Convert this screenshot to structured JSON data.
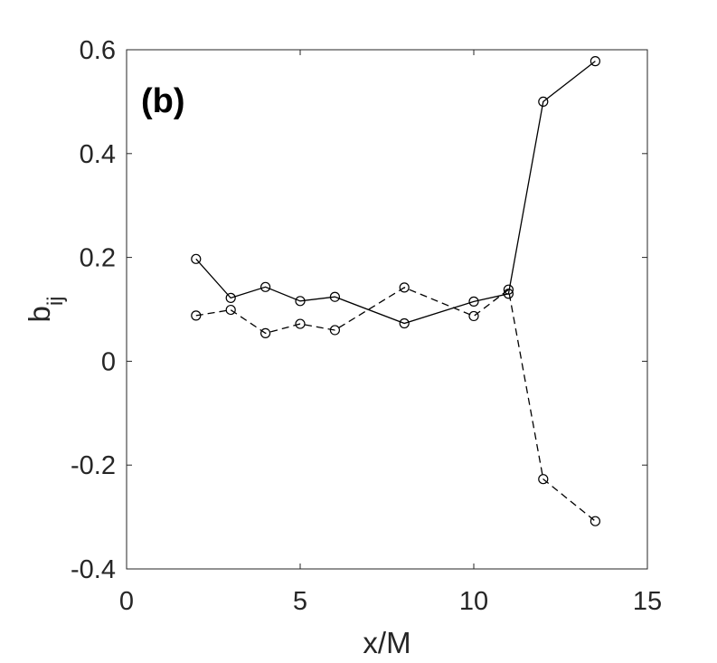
{
  "chart_data": {
    "type": "line",
    "panel_label": "(b)",
    "xlabel": "x/M",
    "ylabel": {
      "base": "b",
      "subscript": "ij"
    },
    "xlim": [
      0,
      15
    ],
    "ylim": [
      -0.4,
      0.6
    ],
    "xticks": [
      0,
      5,
      10,
      15
    ],
    "yticks": [
      -0.4,
      -0.2,
      0,
      0.2,
      0.4,
      0.6
    ],
    "xtick_labels": [
      "0",
      "5",
      "10",
      "15"
    ],
    "ytick_labels": [
      "-0.4",
      "-0.2",
      "0",
      "0.2",
      "0.4",
      "0.6"
    ],
    "grid": false,
    "series": [
      {
        "line_style": "solid",
        "marker": "open-circle",
        "color": "#000000",
        "x": [
          2,
          3,
          4,
          5,
          6,
          8,
          10,
          11,
          12,
          13.5
        ],
        "y": [
          0.197,
          0.122,
          0.143,
          0.116,
          0.124,
          0.073,
          0.115,
          0.13,
          0.5,
          0.578
        ]
      },
      {
        "line_style": "dashed",
        "marker": "open-circle",
        "color": "#000000",
        "x": [
          2,
          3,
          4,
          5,
          6,
          8,
          10,
          11,
          12,
          13.5
        ],
        "y": [
          0.088,
          0.099,
          0.054,
          0.072,
          0.06,
          0.142,
          0.087,
          0.138,
          -0.227,
          -0.308
        ]
      }
    ]
  }
}
